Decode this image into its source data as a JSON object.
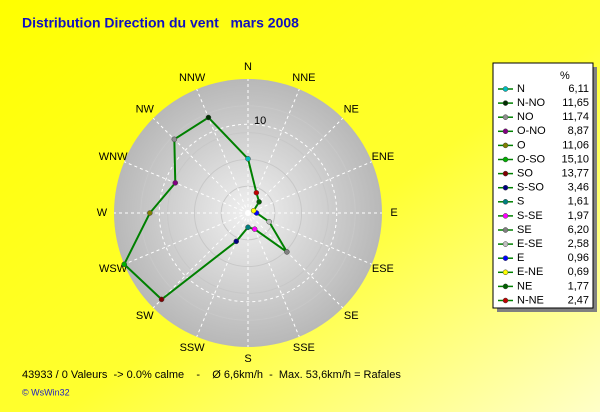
{
  "chart_data": {
    "type": "radar",
    "title": "Distribution Direction du vent   mars 2008",
    "axis_labels": [
      "N",
      "NNE",
      "NE",
      "ENE",
      "E",
      "ESE",
      "SE",
      "SSE",
      "S",
      "SSW",
      "SW",
      "WSW",
      "W",
      "WNW",
      "NW",
      "NNW"
    ],
    "legend_title": "%",
    "series": [
      {
        "color": "#008000",
        "legend_labels": [
          "N",
          "N-NO",
          "NO",
          "O-NO",
          "O",
          "O-SO",
          "SO",
          "S-SO",
          "S",
          "S-SE",
          "SE",
          "E-SE",
          "E",
          "E-NE",
          "NE",
          "N-NE"
        ],
        "values": [
          6.11,
          11.65,
          11.74,
          8.87,
          11.06,
          15.1,
          13.77,
          3.46,
          1.61,
          1.97,
          6.2,
          2.58,
          0.96,
          0.69,
          1.77,
          2.47
        ],
        "value_labels": [
          "6,11",
          "11,65",
          "11,74",
          "8,87",
          "11,06",
          "15,10",
          "13,77",
          "3,46",
          "1,61",
          "1,97",
          "6,20",
          "2,58",
          "0,96",
          "0,69",
          "1,77",
          "2,47"
        ],
        "marker_colors": [
          "#00c0c0",
          "#003000",
          "#909090",
          "#800080",
          "#808000",
          "#00b000",
          "#800000",
          "#000080",
          "#008080",
          "#ff00ff",
          "#808080",
          "#c0c0c0",
          "#0000ff",
          "#ffff00",
          "#006000",
          "#c00000"
        ]
      }
    ],
    "rlim": [
      0,
      15.1
    ],
    "rticks": [
      10
    ],
    "footer": "43933 / 0 Valeurs  -> 0.0% calme    -    Ø 6,6km/h  -  Max. 53,6km/h = Rafales",
    "credit": "© WsWin32"
  }
}
